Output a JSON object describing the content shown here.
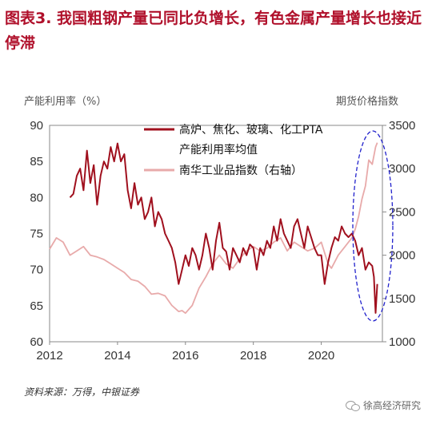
{
  "page": {
    "title": "图表3.  我国粗钢产量已同比负增长，有色金属产量增长也接近停滞",
    "source": "资料来源：万得，中银证券",
    "watermark": "徐高经济研究"
  },
  "chart_data": {
    "type": "line",
    "ylabel": "产能利用率（%）",
    "ylabel_right": "期货价格指数",
    "x_ticks": [
      "2012",
      "2014",
      "2016",
      "2018",
      "2020"
    ],
    "xlim": [
      2012.0,
      2021.8
    ],
    "ylim": [
      60,
      90
    ],
    "y_ticks": [
      60,
      65,
      70,
      75,
      80,
      85,
      90
    ],
    "ylim_right": [
      1000,
      3500
    ],
    "y_ticks_right": [
      1000,
      1500,
      2000,
      2500,
      3000,
      3500
    ],
    "grid": false,
    "legend_position": "top-right",
    "colors": {
      "series1": "#a0101e",
      "series2": "#e8aaaa",
      "ellipse": "#2222cc"
    },
    "series": [
      {
        "name": "高炉、焦化、玻璃、化工PTA产能利用率均值",
        "axis": "left",
        "x": [
          2012.6,
          2012.7,
          2012.8,
          2012.9,
          2013.0,
          2013.1,
          2013.2,
          2013.3,
          2013.4,
          2013.5,
          2013.6,
          2013.7,
          2013.8,
          2013.9,
          2014.0,
          2014.1,
          2014.2,
          2014.3,
          2014.4,
          2014.5,
          2014.6,
          2014.7,
          2014.8,
          2014.9,
          2015.0,
          2015.1,
          2015.2,
          2015.3,
          2015.4,
          2015.5,
          2015.6,
          2015.7,
          2015.8,
          2015.9,
          2016.0,
          2016.1,
          2016.2,
          2016.3,
          2016.4,
          2016.5,
          2016.6,
          2016.7,
          2016.8,
          2016.9,
          2017.0,
          2017.1,
          2017.2,
          2017.3,
          2017.4,
          2017.5,
          2017.6,
          2017.7,
          2017.8,
          2017.9,
          2018.0,
          2018.1,
          2018.2,
          2018.3,
          2018.4,
          2018.5,
          2018.6,
          2018.7,
          2018.8,
          2018.9,
          2019.0,
          2019.1,
          2019.2,
          2019.3,
          2019.4,
          2019.5,
          2019.6,
          2019.7,
          2019.8,
          2019.9,
          2020.0,
          2020.1,
          2020.2,
          2020.3,
          2020.4,
          2020.5,
          2020.6,
          2020.7,
          2020.8,
          2020.9,
          2021.0,
          2021.1,
          2021.2,
          2021.3,
          2021.4,
          2021.5,
          2021.55,
          2021.6,
          2021.65
        ],
        "values": [
          80.0,
          80.5,
          83.0,
          84.0,
          81.0,
          86.5,
          82.0,
          84.5,
          79.0,
          83.0,
          85.0,
          84.0,
          87.0,
          85.0,
          87.5,
          85.0,
          86.0,
          81.0,
          78.5,
          82.0,
          79.0,
          80.0,
          77.0,
          78.0,
          80.0,
          76.0,
          78.0,
          77.0,
          75.0,
          74.0,
          73.0,
          71.0,
          68.0,
          70.0,
          72.0,
          70.5,
          73.0,
          72.0,
          70.0,
          72.0,
          75.0,
          73.0,
          70.0,
          74.0,
          76.5,
          73.0,
          72.5,
          70.0,
          73.0,
          72.0,
          71.0,
          73.0,
          72.0,
          73.5,
          73.0,
          70.0,
          73.0,
          72.0,
          74.0,
          73.0,
          76.0,
          74.0,
          77.0,
          75.0,
          74.0,
          73.0,
          76.0,
          77.0,
          75.0,
          73.0,
          76.0,
          74.5,
          73.0,
          72.0,
          72.0,
          68.0,
          71.0,
          73.0,
          74.5,
          74.0,
          76.0,
          75.0,
          74.5,
          75.0,
          74.0,
          72.0,
          73.0,
          70.0,
          71.0,
          70.5,
          69.0,
          64.0,
          68.0
        ]
      },
      {
        "name": "南华工业品指数（右轴）",
        "axis": "right",
        "x": [
          2012.0,
          2012.2,
          2012.4,
          2012.6,
          2012.8,
          2013.0,
          2013.2,
          2013.4,
          2013.6,
          2013.8,
          2014.0,
          2014.2,
          2014.4,
          2014.6,
          2014.8,
          2015.0,
          2015.2,
          2015.4,
          2015.6,
          2015.8,
          2015.9,
          2016.0,
          2016.2,
          2016.4,
          2016.6,
          2016.8,
          2017.0,
          2017.2,
          2017.4,
          2017.6,
          2017.8,
          2018.0,
          2018.2,
          2018.4,
          2018.6,
          2018.8,
          2019.0,
          2019.2,
          2019.4,
          2019.6,
          2019.8,
          2020.0,
          2020.2,
          2020.3,
          2020.5,
          2020.7,
          2020.9,
          2021.0,
          2021.1,
          2021.2,
          2021.3,
          2021.4,
          2021.5,
          2021.6,
          2021.65
        ],
        "values": [
          2070,
          2200,
          2150,
          2000,
          2050,
          2100,
          2000,
          1980,
          1950,
          1900,
          1850,
          1800,
          1720,
          1700,
          1640,
          1550,
          1560,
          1530,
          1420,
          1350,
          1360,
          1330,
          1420,
          1620,
          1750,
          1900,
          2000,
          1900,
          1850,
          1960,
          2050,
          2100,
          2050,
          2080,
          2150,
          2200,
          2050,
          2150,
          2100,
          2050,
          2080,
          2150,
          1900,
          1850,
          2000,
          2100,
          2200,
          2300,
          2450,
          2650,
          2800,
          3100,
          3050,
          3250,
          3300
        ]
      }
    ]
  }
}
